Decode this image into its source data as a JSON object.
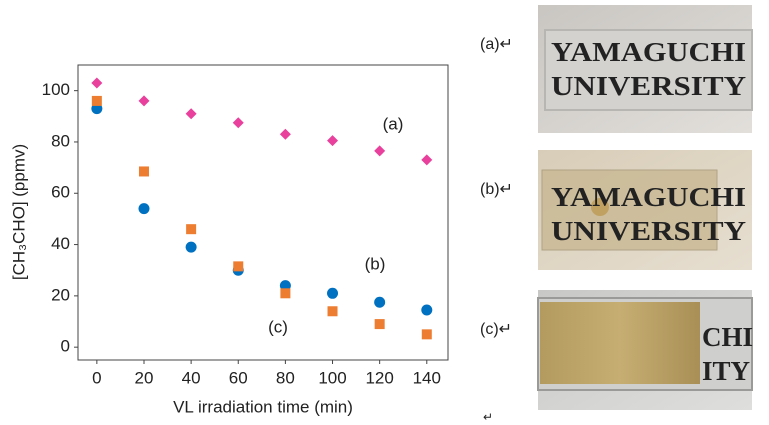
{
  "chart_data": {
    "type": "scatter",
    "xlabel": "VL irradiation time (min)",
    "ylabel": "[CH₃CHO] (ppmv)",
    "xlim": [
      -8,
      149
    ],
    "ylim": [
      -5,
      110
    ],
    "xticks": [
      0,
      20,
      40,
      60,
      80,
      100,
      120,
      140
    ],
    "yticks": [
      0,
      20,
      40,
      60,
      80,
      100
    ],
    "series": [
      {
        "name": "(a)",
        "color": "#e8409c",
        "marker": "diamond",
        "x": [
          0,
          20,
          40,
          60,
          80,
          100,
          120,
          140
        ],
        "values": [
          103,
          96,
          91,
          87.5,
          83,
          80.5,
          76.5,
          73
        ]
      },
      {
        "name": "(b)",
        "color": "#0070c0",
        "marker": "circle",
        "x": [
          0,
          20,
          40,
          60,
          80,
          100,
          120,
          140
        ],
        "values": [
          93,
          54,
          39,
          30,
          24,
          21,
          17.5,
          14.5
        ]
      },
      {
        "name": "(c)",
        "color": "#ed7d31",
        "marker": "square",
        "x": [
          0,
          20,
          40,
          60,
          80,
          100,
          120,
          140
        ],
        "values": [
          96,
          68.5,
          46,
          31.5,
          21,
          14,
          9,
          5
        ]
      }
    ]
  },
  "photos": [
    {
      "label": "(a)↵",
      "lines": [
        "YAMAGUCHI",
        "UNIVERSITY"
      ]
    },
    {
      "label": "(b)↵",
      "lines": [
        "YAMAGUCHI",
        "UNIVERSITY"
      ]
    },
    {
      "label": "(c)↵",
      "lines": [
        "CHI",
        "ITY"
      ]
    }
  ],
  "trailing_mark": "↵"
}
